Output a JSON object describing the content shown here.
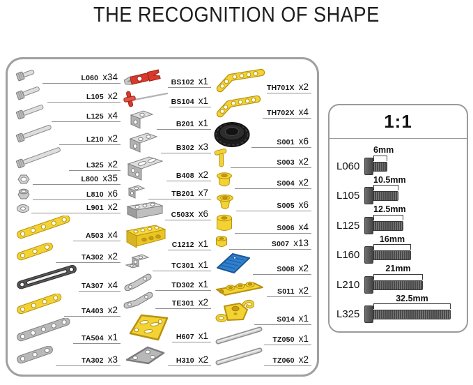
{
  "title": "THE RECOGNITION OF SHAPE",
  "parts_panel": {
    "columns": [
      {
        "items": [
          {
            "code": "L060",
            "qty": "x34",
            "icon": "screw-xs"
          },
          {
            "code": "L105",
            "qty": "x2",
            "icon": "screw-s"
          },
          {
            "code": "L125",
            "qty": "x4",
            "icon": "screw-m"
          },
          {
            "code": "L210",
            "qty": "x2",
            "icon": "screw-l"
          },
          {
            "code": "L325",
            "qty": "x2",
            "icon": "screw-xl"
          },
          {
            "code": "L800",
            "qty": "x35",
            "icon": "nut"
          },
          {
            "code": "L810",
            "qty": "x6",
            "icon": "locknut"
          },
          {
            "code": "L901",
            "qty": "x2",
            "icon": "washer"
          },
          {
            "code": "A503",
            "qty": "x4",
            "icon": "strip-yellow-5"
          },
          {
            "code": "TA302",
            "qty": "x2",
            "icon": "strip-yellow-3"
          },
          {
            "code": "TA307",
            "qty": "x4",
            "icon": "slotted-strip-dark"
          },
          {
            "code": "TA403",
            "qty": "x2",
            "icon": "strip-yellow-4"
          },
          {
            "code": "TA504",
            "qty": "x1",
            "icon": "strip-gray-5"
          },
          {
            "code": "TA302",
            "qty": "x3",
            "icon": "strip-gray-3"
          }
        ]
      },
      {
        "items": [
          {
            "code": "BS102",
            "qty": "x1",
            "icon": "wrench-red"
          },
          {
            "code": "BS104",
            "qty": "x1",
            "icon": "screwdriver-red"
          },
          {
            "code": "B201",
            "qty": "x1",
            "icon": "bracket-small-gray"
          },
          {
            "code": "B302",
            "qty": "x3",
            "icon": "bracket-medium-gray"
          },
          {
            "code": "B408",
            "qty": "x2",
            "icon": "bracket-wide-gray"
          },
          {
            "code": "TB201",
            "qty": "x7",
            "icon": "bracket-tiny-gray"
          },
          {
            "code": "C503X",
            "qty": "x6",
            "icon": "channel-gray"
          },
          {
            "code": "C1212",
            "qty": "x1",
            "icon": "channel-yellow"
          },
          {
            "code": "TC301",
            "qty": "x1",
            "icon": "bracket-z-gray"
          },
          {
            "code": "TD302",
            "qty": "x1",
            "icon": "bent-strip-gray"
          },
          {
            "code": "TE301",
            "qty": "x2",
            "icon": "angle-strip-gray"
          },
          {
            "code": "H607",
            "qty": "x1",
            "icon": "plate-yellow"
          },
          {
            "code": "H310",
            "qty": "x2",
            "icon": "plate-gray"
          }
        ]
      },
      {
        "items": [
          {
            "code": "TH701X",
            "qty": "x2",
            "icon": "angle-strip-yellow-long"
          },
          {
            "code": "TH702X",
            "qty": "x4",
            "icon": "angle-strip-yellow-short"
          },
          {
            "code": "S001",
            "qty": "x6",
            "icon": "tire-black"
          },
          {
            "code": "S003",
            "qty": "x2",
            "icon": "pin-yellow"
          },
          {
            "code": "S004",
            "qty": "x2",
            "icon": "bushing-yellow"
          },
          {
            "code": "S005",
            "qty": "x6",
            "icon": "flanged-bushing-yellow"
          },
          {
            "code": "S006",
            "qty": "x4",
            "icon": "spacer-tall-yellow"
          },
          {
            "code": "S007",
            "qty": "x13",
            "icon": "spacer-small-yellow"
          },
          {
            "code": "S008",
            "qty": "x2",
            "icon": "pad-blue"
          },
          {
            "code": "S011",
            "qty": "x2",
            "icon": "connector-yellow"
          },
          {
            "code": "S014",
            "qty": "x1",
            "icon": "hook-block-yellow"
          },
          {
            "code": "TZ050",
            "qty": "x1",
            "icon": "axle-rod"
          },
          {
            "code": "TZ060",
            "qty": "x2",
            "icon": "axle-rod"
          }
        ]
      }
    ]
  },
  "scale_panel": {
    "title": "1:1",
    "rows": [
      {
        "code": "L060",
        "length_label": "6mm",
        "length_mm": 6
      },
      {
        "code": "L105",
        "length_label": "10.5mm",
        "length_mm": 10.5
      },
      {
        "code": "L125",
        "length_label": "12.5mm",
        "length_mm": 12.5
      },
      {
        "code": "L160",
        "length_label": "16mm",
        "length_mm": 16
      },
      {
        "code": "L210",
        "length_label": "21mm",
        "length_mm": 21
      },
      {
        "code": "L325",
        "length_label": "32.5mm",
        "length_mm": 32.5
      }
    ]
  },
  "colors": {
    "yellow": "#f3d234",
    "yellow_stroke": "#b7920d",
    "red": "#d9392b",
    "blue": "#2f80cd",
    "metal_gray": "#c6c6c6",
    "dark_gray": "#565656",
    "tire_black": "#1b1b1b",
    "leader_line": "#8f8f8f",
    "panel_border": "#a0a0a0"
  }
}
